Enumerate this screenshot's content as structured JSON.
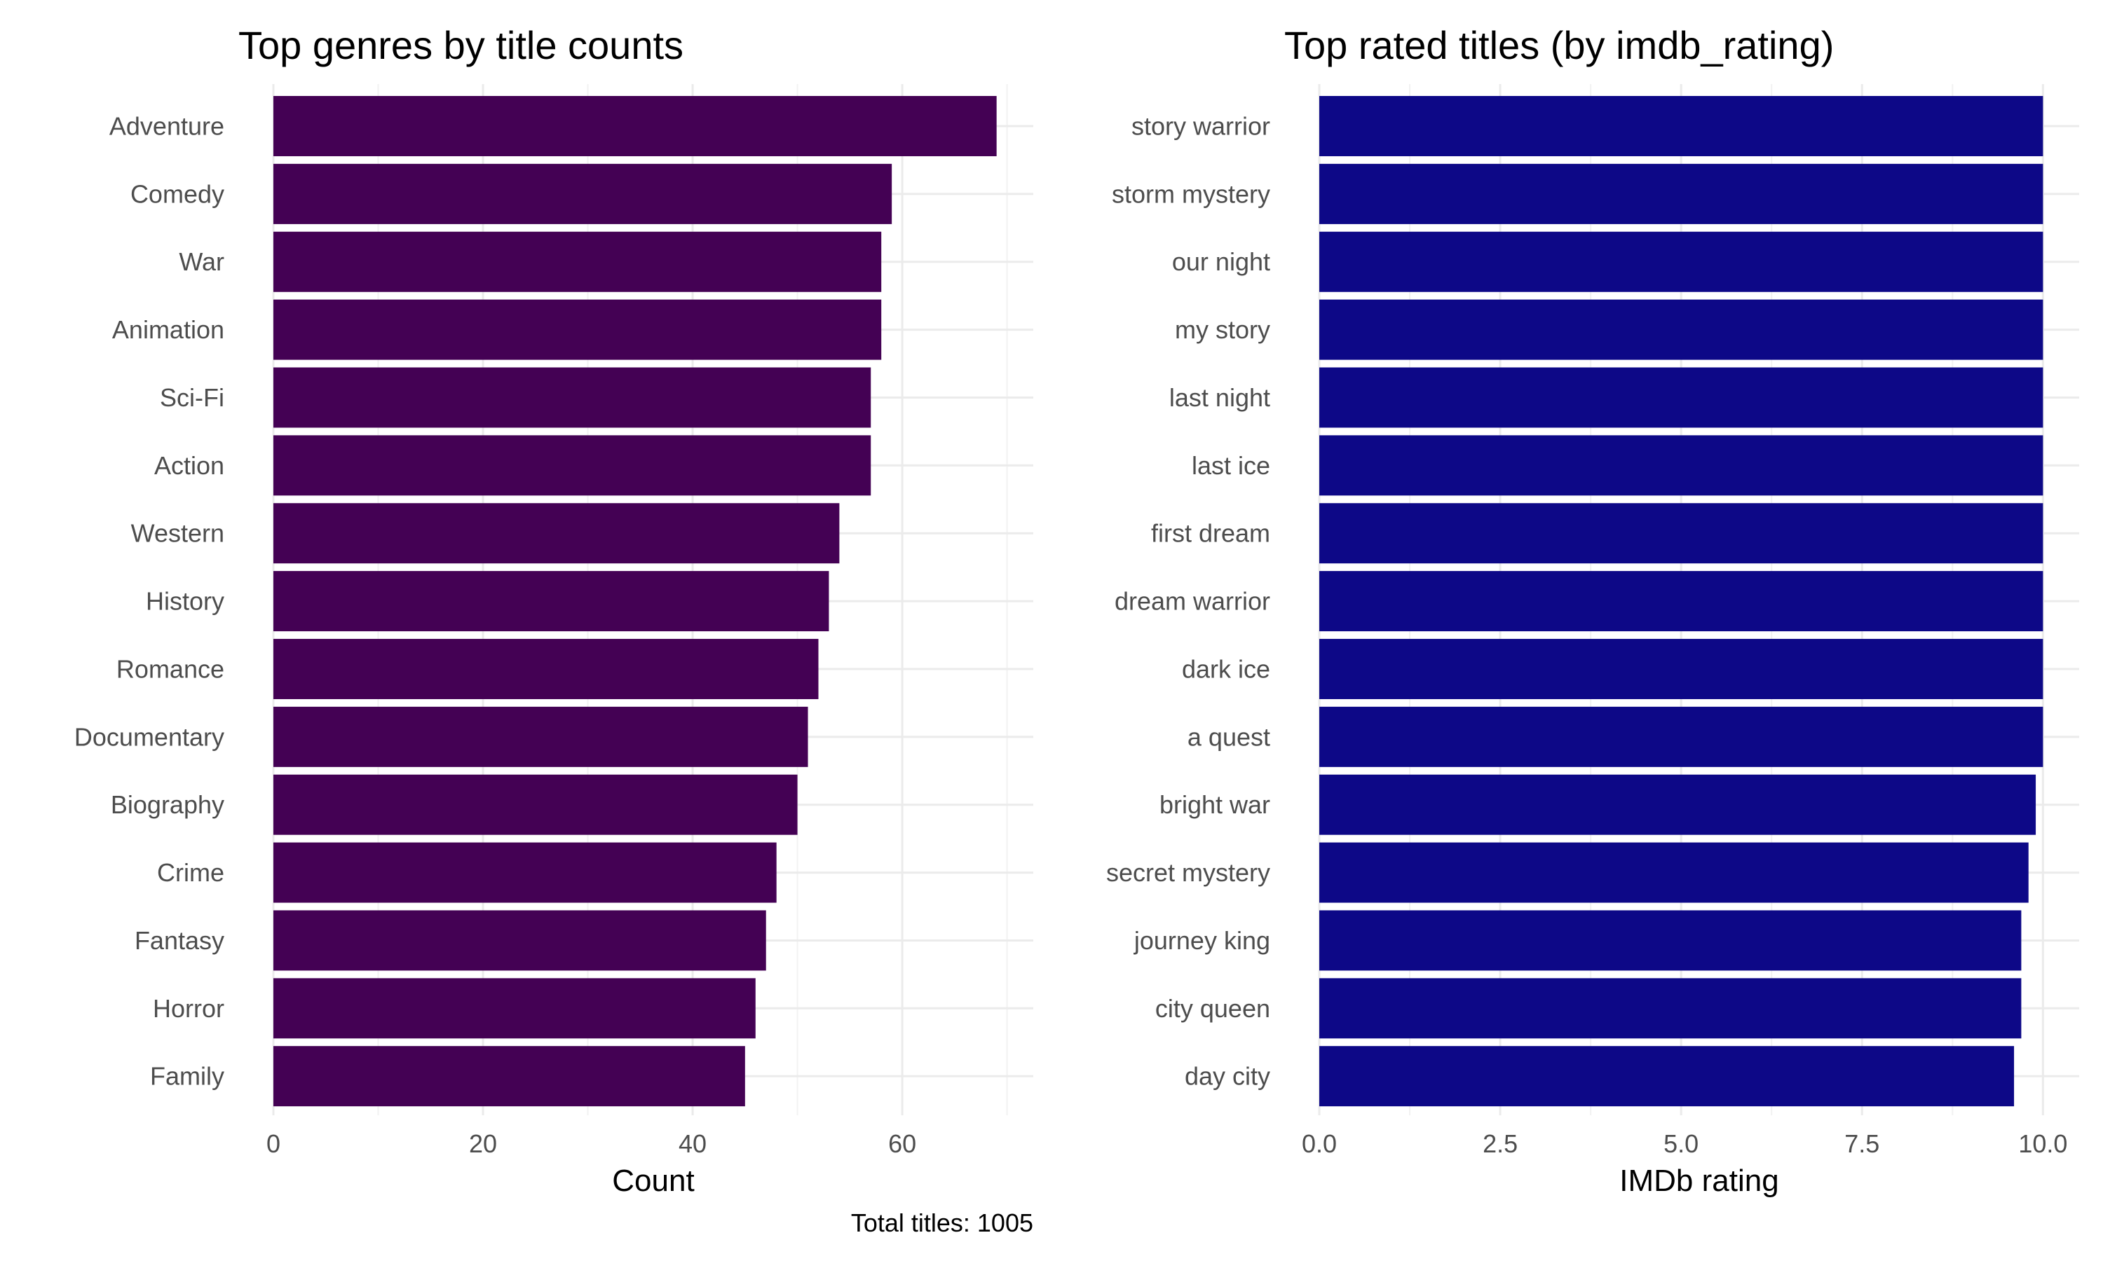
{
  "chart_data": [
    {
      "type": "bar",
      "orientation": "horizontal",
      "title": "Top genres by title counts",
      "xlabel": "Count",
      "ylabel": "",
      "categories": [
        "Adventure",
        "Comedy",
        "War",
        "Animation",
        "Sci-Fi",
        "Action",
        "Western",
        "History",
        "Romance",
        "Documentary",
        "Biography",
        "Crime",
        "Fantasy",
        "Horror",
        "Family"
      ],
      "values": [
        69,
        59,
        58,
        58,
        57,
        57,
        54,
        53,
        52,
        51,
        50,
        48,
        47,
        46,
        45
      ],
      "xlim": [
        0,
        72.5
      ],
      "xticks": [
        0,
        20,
        40,
        60
      ],
      "xtick_labels": [
        "0",
        "20",
        "40",
        "60"
      ],
      "bar_color": "#440154",
      "grid": true,
      "caption": "Total titles: 1005"
    },
    {
      "type": "bar",
      "orientation": "horizontal",
      "title": "Top rated titles (by imdb_rating)",
      "xlabel": "IMDb rating",
      "ylabel": "",
      "categories": [
        "story warrior",
        "storm mystery",
        "our night",
        "my story",
        "last night",
        "last ice",
        "first dream",
        "dream warrior",
        "dark ice",
        "a quest",
        "bright war",
        "secret mystery",
        "journey king",
        "city queen",
        "day city"
      ],
      "values": [
        10.0,
        10.0,
        10.0,
        10.0,
        10.0,
        10.0,
        10.0,
        10.0,
        10.0,
        10.0,
        9.9,
        9.8,
        9.7,
        9.7,
        9.6
      ],
      "xlim": [
        0,
        10.5
      ],
      "xticks": [
        0,
        2.5,
        5,
        7.5,
        10
      ],
      "xtick_labels": [
        "0.0",
        "2.5",
        "5.0",
        "7.5",
        "10.0"
      ],
      "bar_color": "#0d0887",
      "grid": true
    }
  ]
}
